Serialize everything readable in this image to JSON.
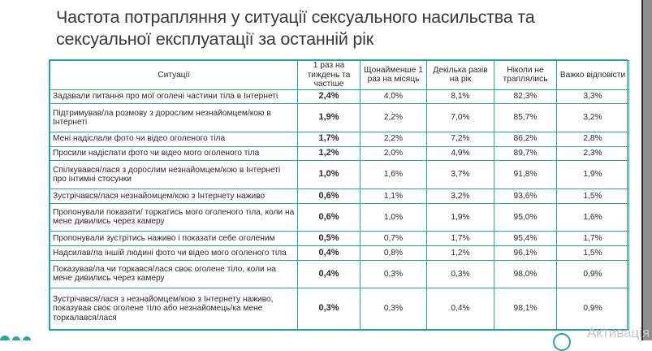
{
  "title": "Частота потрапляння у ситуації сексуального насильства та сексуальної експлуатації за останній рік",
  "table": {
    "headers": [
      "Ситуації",
      "1 раз на тиждень та частіше",
      "Щонайменше 1 раз на місяць",
      "Декілька разів на рік",
      "Ніколи не траплялись",
      "Важко відповісти"
    ],
    "rows": [
      [
        "Задавали питання про мої оголені частини тіла в Інтернеті",
        "2,4%",
        "4,0%",
        "8,1%",
        "82,3%",
        "3,3%"
      ],
      [
        "Підтримував/ла розмову з дорослим незнайомцем/кою в Інтернеті",
        "1,9%",
        "2,2%",
        "7,0%",
        "85,7%",
        "3,2%"
      ],
      [
        "Мені надіслали фото чи відео оголеного тіла",
        "1,7%",
        "2,2%",
        "7,2%",
        "86,2%",
        "2,8%"
      ],
      [
        "Просили надіслати фото чи відео мого оголеного тіла",
        "1,2%",
        "2,0%",
        "4,9%",
        "89,7%",
        "2,3%"
      ],
      [
        "Спілкувався/лася з дорослим незнайомцем/кою в Інтернеті про інтимні стосунки",
        "1,0%",
        "1,6%",
        "3,7%",
        "91,8%",
        "1,9%"
      ],
      [
        "Зустрічався/лася незнайомцем/кою з Інтернету наживо",
        "0,6%",
        "1,1%",
        "3,2%",
        "93,6%",
        "1,5%"
      ],
      [
        "Пропонували показати/ торкатись мого оголеного тіла, коли на мене дивились через камеру",
        "0,6%",
        "1,0%",
        "1,9%",
        "95,0%",
        "1,6%"
      ],
      [
        "Пропонували зустрітись наживо і показати себе оголеним",
        "0,5%",
        "0,7%",
        "1,7%",
        "95,4%",
        "1,7%"
      ],
      [
        "Надсилав/ла іншій людині фото чи відео мого оголеного тіла",
        "0,4%",
        "0,8%",
        "1,2%",
        "96,1%",
        "1,5%"
      ],
      [
        "Показував/ла чи торкався/лася своє оголене тіло, коли на мене дивились через камеру",
        "0,4%",
        "0,3%",
        "0,3%",
        "98,0%",
        "0,9%"
      ],
      [
        "Зустрічався/лася з незнайомцем/кою з Інтернету наживо, показував своє оголене тіло або незнайомець/ка мене торкалався/лася",
        "0,3%",
        "0,3%",
        "0,4%",
        "98,1%",
        "0,9%"
      ]
    ]
  },
  "watermark": "Активація"
}
